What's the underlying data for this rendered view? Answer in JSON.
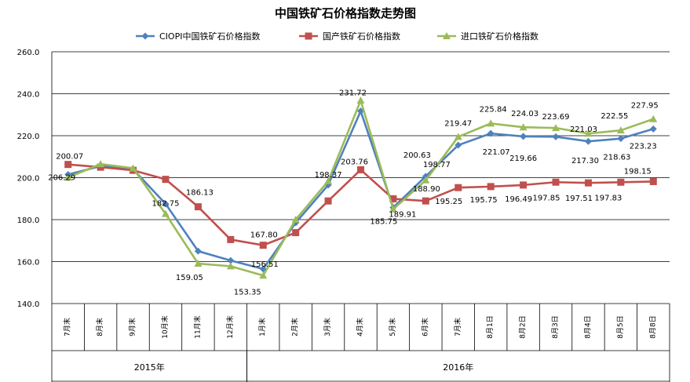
{
  "chart_data": {
    "type": "line",
    "title": "中国铁矿石价格指数走势图",
    "categories": [
      "7月末",
      "8月末",
      "9月末",
      "10月末",
      "11月末",
      "12月末",
      "1月末",
      "2月末",
      "3月末",
      "4月末",
      "5月末",
      "6月末",
      "7月末",
      "8月1日",
      "8月2日",
      "8月3日",
      "8月4日",
      "8月5日",
      "8月8日"
    ],
    "year_groups": [
      {
        "label": "2015年",
        "start": 0,
        "end": 5
      },
      {
        "label": "2016年",
        "start": 6,
        "end": 18
      }
    ],
    "ylim": [
      140,
      260
    ],
    "yticks": [
      140,
      160,
      180,
      200,
      220,
      240,
      260
    ],
    "ytick_labels": [
      "140.0",
      "160.0",
      "180.0",
      "200.0",
      "220.0",
      "240.0",
      "260.0"
    ],
    "grid": true,
    "legend": "top",
    "series": [
      {
        "name": "CIOPI中国铁矿石价格指数",
        "color": "#4F81BD",
        "marker": "diamond",
        "values": [
          201.5,
          205.5,
          204.0,
          187.5,
          165.0,
          160.5,
          156.51,
          178.5,
          196.5,
          231.72,
          185.75,
          200.63,
          215.5,
          221.07,
          219.66,
          219.5,
          217.3,
          218.63,
          223.23
        ]
      },
      {
        "name": "国产铁矿石价格指数",
        "color": "#C0504D",
        "marker": "square",
        "values": [
          206.29,
          205.0,
          203.5,
          199.2,
          186.13,
          170.5,
          167.8,
          173.8,
          188.9,
          203.76,
          189.91,
          188.9,
          195.25,
          195.75,
          196.49,
          197.85,
          197.51,
          197.83,
          198.15
        ]
      },
      {
        "name": "进口铁矿石价格指数",
        "color": "#9BBB59",
        "marker": "triangle",
        "values": [
          200.07,
          206.5,
          204.5,
          182.75,
          159.05,
          157.8,
          153.35,
          180.0,
          198.37,
          236.8,
          185.0,
          198.77,
          219.47,
          225.84,
          224.03,
          223.69,
          221.03,
          222.55,
          227.95
        ]
      }
    ],
    "data_labels": [
      {
        "text": "200.07",
        "series": 2,
        "index": 0
      },
      {
        "text": "206.29",
        "series": 1,
        "index": 0
      },
      {
        "text": "182.75",
        "series": 2,
        "index": 3
      },
      {
        "text": "186.13",
        "series": 1,
        "index": 4
      },
      {
        "text": "159.05",
        "series": 2,
        "index": 4
      },
      {
        "text": "153.35",
        "series": 2,
        "index": 6
      },
      {
        "text": "167.80",
        "series": 1,
        "index": 6
      },
      {
        "text": "156.51",
        "series": 0,
        "index": 6
      },
      {
        "text": "198.37",
        "series": 2,
        "index": 8
      },
      {
        "text": "231.72",
        "series": 0,
        "index": 9
      },
      {
        "text": "203.76",
        "series": 1,
        "index": 9
      },
      {
        "text": "185.75",
        "series": 0,
        "index": 10
      },
      {
        "text": "189.91",
        "series": 1,
        "index": 10
      },
      {
        "text": "200.63",
        "series": 0,
        "index": 11
      },
      {
        "text": "188.90",
        "series": 1,
        "index": 11
      },
      {
        "text": "198.77",
        "series": 2,
        "index": 11
      },
      {
        "text": "219.47",
        "series": 2,
        "index": 12
      },
      {
        "text": "195.25",
        "series": 1,
        "index": 12
      },
      {
        "text": "225.84",
        "series": 2,
        "index": 13
      },
      {
        "text": "221.07",
        "series": 0,
        "index": 13
      },
      {
        "text": "195.75",
        "series": 1,
        "index": 13
      },
      {
        "text": "224.03",
        "series": 2,
        "index": 14
      },
      {
        "text": "219.66",
        "series": 0,
        "index": 14
      },
      {
        "text": "196.49",
        "series": 1,
        "index": 14
      },
      {
        "text": "223.69",
        "series": 2,
        "index": 15
      },
      {
        "text": "197.85",
        "series": 1,
        "index": 15
      },
      {
        "text": "221.03",
        "series": 2,
        "index": 16
      },
      {
        "text": "217.30",
        "series": 0,
        "index": 16
      },
      {
        "text": "197.51",
        "series": 1,
        "index": 16
      },
      {
        "text": "222.55",
        "series": 2,
        "index": 17
      },
      {
        "text": "218.63",
        "series": 0,
        "index": 17
      },
      {
        "text": "197.83",
        "series": 1,
        "index": 17
      },
      {
        "text": "227.95",
        "series": 2,
        "index": 18
      },
      {
        "text": "223.23",
        "series": 0,
        "index": 18
      },
      {
        "text": "198.15",
        "series": 1,
        "index": 18
      }
    ]
  }
}
